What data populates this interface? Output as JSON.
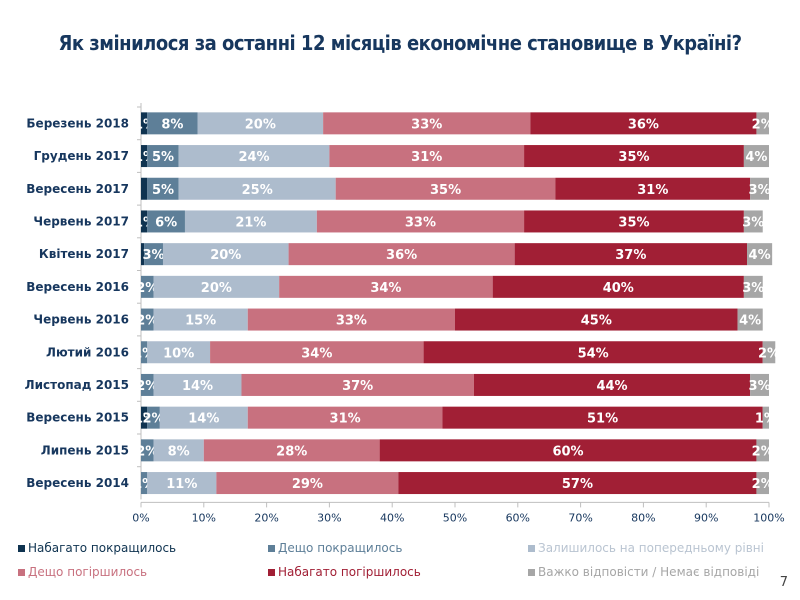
{
  "page_number": "7",
  "chart_data": {
    "type": "bar",
    "orientation": "horizontal",
    "stacked": true,
    "title": "Як змінилося за останні 12 місяців економічне становище в Україні?",
    "xlabel": "",
    "ylabel": "",
    "xlim": [
      0,
      100
    ],
    "x_ticks": [
      "0%",
      "10%",
      "20%",
      "30%",
      "40%",
      "50%",
      "60%",
      "70%",
      "80%",
      "90%",
      "100%"
    ],
    "legend_position": "bottom",
    "categories": [
      "Березень 2018",
      "Грудень 2017",
      "Вересень 2017",
      "Червень 2017",
      "Квітень 2017",
      "Вересень 2016",
      "Червень 2016",
      "Лютий 2016",
      "Листопад 2015",
      "Вересень 2015",
      "Липень 2015",
      "Вересень 2014"
    ],
    "series": [
      {
        "name": "Набагато покращилось",
        "color": "#0f3350",
        "label_color": "#0f3350",
        "values": [
          1,
          1,
          1,
          1,
          0.5,
          0,
          0,
          0,
          0,
          1,
          0,
          0
        ],
        "labels": [
          "1%",
          "1%",
          "",
          "1%",
          "",
          "",
          "",
          "",
          "",
          "1%",
          "",
          ""
        ]
      },
      {
        "name": "Дещо покращилось",
        "color": "#5e7f98",
        "label_color": "#5e7f98",
        "values": [
          8,
          5,
          5,
          6,
          3,
          2,
          2,
          1,
          2,
          2,
          2,
          1
        ],
        "labels": [
          "8%",
          "5%",
          "5%",
          "6%",
          "3%",
          "2%",
          "2%",
          "1%",
          "2%",
          "2%",
          "2%",
          "1%"
        ]
      },
      {
        "name": "Залишилось на попередньому рівні",
        "color": "#adbccd",
        "label_color": "#b9c4d1",
        "values": [
          20,
          24,
          25,
          21,
          20,
          20,
          15,
          10,
          14,
          14,
          8,
          11
        ],
        "labels": [
          "20%",
          "24%",
          "25%",
          "21%",
          "20%",
          "20%",
          "15%",
          "10%",
          "14%",
          "14%",
          "8%",
          "11%"
        ]
      },
      {
        "name": "Дещо погіршилось",
        "color": "#c8717f",
        "label_color": "#c8717f",
        "values": [
          33,
          31,
          35,
          33,
          36,
          34,
          33,
          34,
          37,
          31,
          28,
          29
        ],
        "labels": [
          "33%",
          "31%",
          "35%",
          "33%",
          "36%",
          "34%",
          "33%",
          "34%",
          "37%",
          "31%",
          "28%",
          "29%"
        ]
      },
      {
        "name": "Набагато погіршилось",
        "color": "#a11f35",
        "label_color": "#a11f35",
        "values": [
          36,
          35,
          31,
          35,
          37,
          40,
          45,
          54,
          44,
          51,
          60,
          57
        ],
        "labels": [
          "36%",
          "35%",
          "31%",
          "35%",
          "37%",
          "40%",
          "45%",
          "54%",
          "44%",
          "51%",
          "60%",
          "57%"
        ]
      },
      {
        "name": "Важко відповісти / Немає відповіді",
        "color": "#a6a6a6",
        "label_color": "#a6a6a6",
        "values": [
          2,
          4,
          3,
          3,
          4,
          3,
          4,
          2,
          3,
          1,
          2,
          2
        ],
        "labels": [
          "2%",
          "4%",
          "3%",
          "3%",
          "4%",
          "3%",
          "4%",
          "2%",
          "3%",
          "1%",
          "2%",
          "2%"
        ]
      }
    ]
  }
}
